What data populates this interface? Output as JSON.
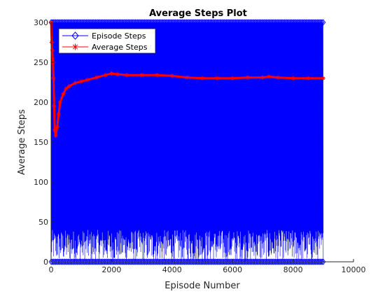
{
  "chart_data": {
    "type": "line",
    "title": "Average Steps Plot",
    "xlabel": "Episode Number",
    "ylabel": "Average Steps",
    "xlim": [
      0,
      10000
    ],
    "ylim": [
      0,
      300
    ],
    "xticks": [
      0,
      2000,
      4000,
      6000,
      8000,
      10000
    ],
    "yticks": [
      0,
      50,
      100,
      150,
      200,
      250,
      300
    ],
    "grid": false,
    "legend_position": "top-left",
    "series": [
      {
        "name": "Episode Steps",
        "color": "#0000ff",
        "marker": "diamond",
        "note_range": "episode steps oscillate between 0 and 300 for episodes 1-9000",
        "x_range": [
          1,
          9000
        ],
        "y_range": [
          0,
          300
        ]
      },
      {
        "name": "Average Steps",
        "color": "#ff0000",
        "marker": "asterisk",
        "x": [
          1,
          20,
          40,
          60,
          80,
          100,
          120,
          150,
          200,
          250,
          300,
          400,
          500,
          600,
          800,
          1000,
          1200,
          1500,
          1800,
          2000,
          2200,
          2500,
          3000,
          3500,
          4000,
          4500,
          5000,
          5500,
          6000,
          6500,
          7000,
          7200,
          7500,
          8000,
          8500,
          9000
        ],
        "y": [
          300,
          275,
          265,
          250,
          230,
          195,
          165,
          158,
          168,
          185,
          200,
          210,
          217,
          220,
          224,
          226,
          228,
          231,
          234,
          236,
          235,
          234,
          234,
          234,
          233,
          231,
          230,
          230,
          230,
          231,
          231,
          232,
          231,
          230,
          230,
          230
        ]
      }
    ]
  }
}
